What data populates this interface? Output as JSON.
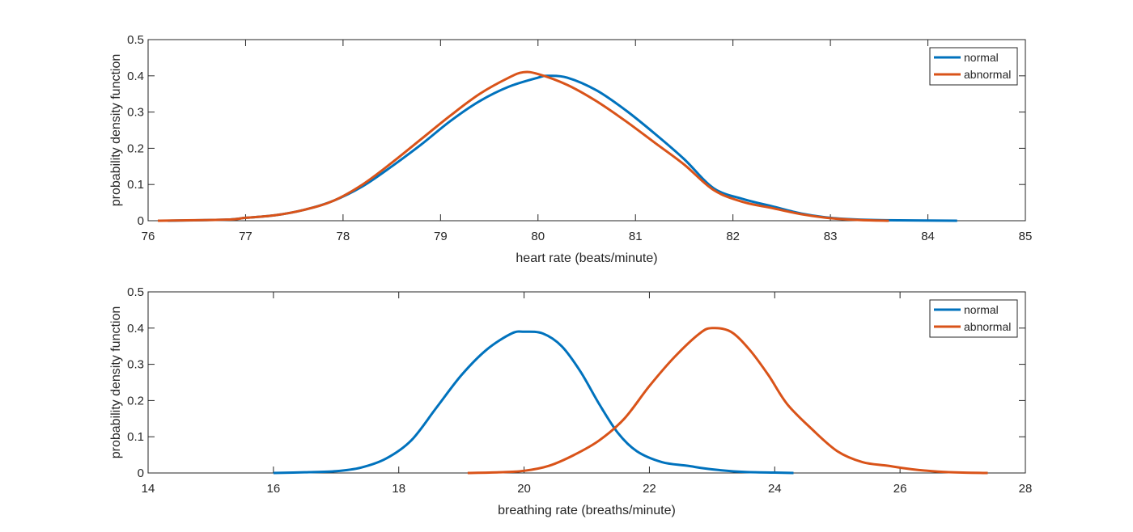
{
  "chart_data": [
    {
      "type": "line",
      "title": "",
      "xlabel": "heart rate (beats/minute)",
      "ylabel": "probability density function",
      "xlim": [
        76,
        85
      ],
      "ylim": [
        0,
        0.5
      ],
      "xticks": [
        76,
        77,
        78,
        79,
        80,
        81,
        82,
        83,
        84,
        85
      ],
      "yticks": [
        0,
        0.1,
        0.2,
        0.3,
        0.4,
        0.5
      ],
      "grid": false,
      "legend": "top-right",
      "series": [
        {
          "name": "normal",
          "color": "#0072BD",
          "x": [
            76.2,
            76.8,
            77.0,
            77.3,
            77.6,
            77.9,
            78.2,
            78.5,
            78.8,
            79.1,
            79.4,
            79.7,
            80.0,
            80.1,
            80.3,
            80.6,
            80.9,
            81.2,
            81.5,
            81.8,
            82.1,
            82.4,
            82.7,
            83.0,
            83.3,
            83.7,
            84.3
          ],
          "y": [
            0.0,
            0.003,
            0.008,
            0.015,
            0.03,
            0.055,
            0.095,
            0.15,
            0.21,
            0.275,
            0.33,
            0.37,
            0.395,
            0.4,
            0.395,
            0.36,
            0.305,
            0.24,
            0.17,
            0.09,
            0.06,
            0.04,
            0.02,
            0.008,
            0.003,
            0.001,
            0.0
          ]
        },
        {
          "name": "abnormal",
          "color": "#D95319",
          "x": [
            76.1,
            76.8,
            77.0,
            77.3,
            77.6,
            77.9,
            78.2,
            78.5,
            78.8,
            79.1,
            79.4,
            79.7,
            79.85,
            80.0,
            80.3,
            80.6,
            80.9,
            81.2,
            81.5,
            81.8,
            82.1,
            82.4,
            82.7,
            83.0,
            83.3,
            83.6
          ],
          "y": [
            0.0,
            0.003,
            0.008,
            0.015,
            0.03,
            0.055,
            0.1,
            0.16,
            0.225,
            0.29,
            0.35,
            0.395,
            0.41,
            0.405,
            0.375,
            0.33,
            0.275,
            0.215,
            0.155,
            0.085,
            0.052,
            0.035,
            0.018,
            0.007,
            0.002,
            0.0
          ]
        }
      ]
    },
    {
      "type": "line",
      "title": "",
      "xlabel": "breathing rate (breaths/minute)",
      "ylabel": "probability density function",
      "xlim": [
        14,
        28
      ],
      "ylim": [
        0,
        0.5
      ],
      "xticks": [
        14,
        16,
        18,
        20,
        22,
        24,
        26,
        28
      ],
      "yticks": [
        0,
        0.1,
        0.2,
        0.3,
        0.4,
        0.5
      ],
      "grid": false,
      "legend": "top-right",
      "series": [
        {
          "name": "normal",
          "color": "#0072BD",
          "x": [
            16.0,
            16.5,
            17.0,
            17.4,
            17.8,
            18.2,
            18.6,
            19.0,
            19.4,
            19.8,
            20.0,
            20.3,
            20.6,
            20.9,
            21.2,
            21.5,
            21.8,
            22.2,
            22.6,
            23.0,
            23.5,
            24.0,
            24.3
          ],
          "y": [
            0.0,
            0.002,
            0.005,
            0.015,
            0.04,
            0.09,
            0.18,
            0.27,
            0.34,
            0.385,
            0.39,
            0.385,
            0.35,
            0.28,
            0.19,
            0.11,
            0.06,
            0.03,
            0.02,
            0.01,
            0.003,
            0.001,
            0.0
          ]
        },
        {
          "name": "abnormal",
          "color": "#D95319",
          "x": [
            19.1,
            19.6,
            20.0,
            20.4,
            20.8,
            21.2,
            21.6,
            22.0,
            22.4,
            22.8,
            23.0,
            23.3,
            23.6,
            23.9,
            24.2,
            24.6,
            25.0,
            25.4,
            25.8,
            26.2,
            26.6,
            27.0,
            27.4
          ],
          "y": [
            0.0,
            0.002,
            0.006,
            0.02,
            0.05,
            0.09,
            0.15,
            0.24,
            0.32,
            0.385,
            0.4,
            0.39,
            0.34,
            0.27,
            0.19,
            0.12,
            0.06,
            0.03,
            0.02,
            0.01,
            0.004,
            0.001,
            0.0
          ]
        }
      ]
    }
  ]
}
